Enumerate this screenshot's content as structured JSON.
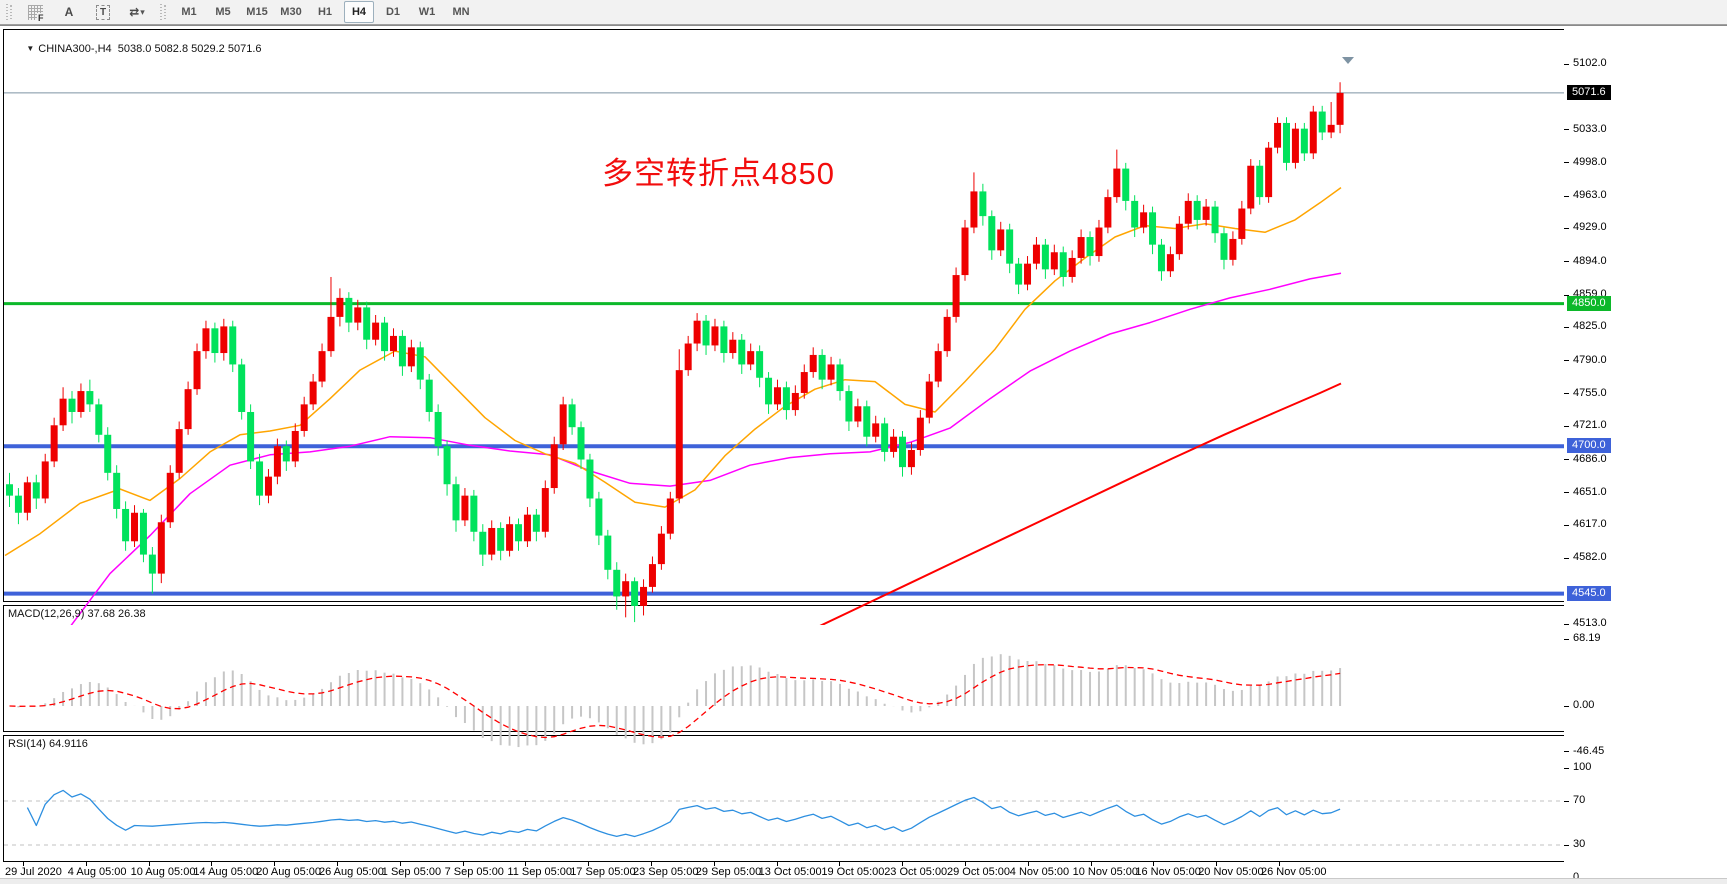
{
  "toolbar": {
    "icons": [
      {
        "name": "toolbar-customize-icon",
        "glyph": "F"
      },
      {
        "name": "font-tool-icon",
        "glyph": "A"
      },
      {
        "name": "text-box-tool-icon",
        "glyph": "T"
      },
      {
        "name": "color-scheme-icon",
        "glyph": "⇄"
      }
    ],
    "dropdown_caret": "▾",
    "timeframes": [
      "M1",
      "M5",
      "M15",
      "M30",
      "H1",
      "H4",
      "D1",
      "W1",
      "MN"
    ],
    "active_timeframe": "H4"
  },
  "chart": {
    "collapse_glyph": "▼",
    "title": "CHINA300-,H4",
    "ohlc_values": "5038.0 5082.8 5029.2 5071.6",
    "annotation": {
      "text": "多空转折点4850",
      "color": "#f20d0d"
    },
    "price_ticks": [
      "5102.0",
      "5033.0",
      "4998.0",
      "4963.0",
      "4929.0",
      "4894.0",
      "4859.0",
      "4825.0",
      "4790.0",
      "4755.0",
      "4721.0",
      "4686.0",
      "4651.0",
      "4617.0",
      "4582.0",
      "4513.0"
    ],
    "levels": [
      {
        "name": "current-price-line",
        "price": 5071.6,
        "label": "5071.6",
        "line_color": "#7e93a3",
        "badge_bg": "#000000",
        "thickness": 1
      },
      {
        "name": "level-line-4850",
        "price": 4850,
        "label": "4850.0",
        "line_color": "#0cb82a",
        "badge_bg": "#0cb82a",
        "thickness": 3
      },
      {
        "name": "level-line-4700",
        "price": 4700,
        "label": "4700.0",
        "line_color": "#3e62d9",
        "badge_bg": "#3e62d9",
        "thickness": 4
      },
      {
        "name": "level-line-4545",
        "price": 4545,
        "label": "4545.0",
        "line_color": "#3e62d9",
        "badge_bg": "#3e62d9",
        "thickness": 4
      }
    ]
  },
  "macd": {
    "label": "MACD(12,26,9) 37.68 26.38",
    "ticks": [
      {
        "v": 68.19,
        "label": "68.19"
      },
      {
        "v": 0,
        "label": "0.00"
      },
      {
        "v": -46.45,
        "label": "-46.45"
      }
    ]
  },
  "rsi": {
    "label": "RSI(14) 64.9116",
    "ticks": [
      {
        "v": 100,
        "label": "100"
      },
      {
        "v": 70,
        "label": "70"
      },
      {
        "v": 30,
        "label": "30"
      },
      {
        "v": 0,
        "label": "0"
      }
    ],
    "dashed_levels": [
      70,
      30
    ]
  },
  "time_axis": {
    "labels": [
      "29 Jul 2020",
      "4 Aug 05:00",
      "10 Aug 05:00",
      "14 Aug 05:00",
      "20 Aug 05:00",
      "26 Aug 05:00",
      "1 Sep 05:00",
      "7 Sep 05:00",
      "11 Sep 05:00",
      "17 Sep 05:00",
      "23 Sep 05:00",
      "29 Sep 05:00",
      "13 Oct 05:00",
      "19 Oct 05:00",
      "23 Oct 05:00",
      "29 Oct 05:00",
      "4 Nov 05:00",
      "10 Nov 05:00",
      "16 Nov 05:00",
      "20 Nov 05:00",
      "26 Nov 05:00"
    ]
  },
  "chart_data": {
    "type": "candlestick",
    "symbol": "CHINA300-",
    "timeframe": "H4",
    "last_bar": {
      "open": 5038.0,
      "high": 5082.8,
      "low": 5029.2,
      "close": 5071.6
    },
    "price_axis_range": {
      "min": 4513,
      "max": 5102
    },
    "colors": {
      "up": "#ee0000",
      "down": "#00e25c",
      "ma_fast": "#ffa500",
      "ma_mid": "#ff00ff",
      "ma_slow": "#ff0000",
      "macd_hist": "#c6c6c6",
      "macd_signal": "#ff0000",
      "rsi_line": "#2d8fe0",
      "dashed_level": "#c0c0c0",
      "shift_marker": "#7e93a3"
    },
    "candles": [
      [
        4660,
        4672,
        4636,
        4648
      ],
      [
        4648,
        4656,
        4618,
        4630
      ],
      [
        4630,
        4668,
        4622,
        4662
      ],
      [
        4662,
        4670,
        4634,
        4645
      ],
      [
        4645,
        4692,
        4640,
        4684
      ],
      [
        4684,
        4730,
        4678,
        4722
      ],
      [
        4722,
        4762,
        4716,
        4750
      ],
      [
        4750,
        4758,
        4724,
        4736
      ],
      [
        4736,
        4766,
        4730,
        4758
      ],
      [
        4758,
        4770,
        4736,
        4744
      ],
      [
        4744,
        4750,
        4704,
        4712
      ],
      [
        4712,
        4720,
        4664,
        4672
      ],
      [
        4672,
        4680,
        4624,
        4634
      ],
      [
        4634,
        4642,
        4590,
        4600
      ],
      [
        4600,
        4638,
        4594,
        4630
      ],
      [
        4630,
        4634,
        4578,
        4586
      ],
      [
        4586,
        4594,
        4545,
        4566
      ],
      [
        4566,
        4628,
        4556,
        4620
      ],
      [
        4620,
        4680,
        4614,
        4672
      ],
      [
        4672,
        4726,
        4666,
        4718
      ],
      [
        4718,
        4768,
        4712,
        4760
      ],
      [
        4760,
        4808,
        4754,
        4800
      ],
      [
        4800,
        4832,
        4792,
        4824
      ],
      [
        4824,
        4830,
        4788,
        4798
      ],
      [
        4798,
        4834,
        4790,
        4826
      ],
      [
        4826,
        4832,
        4778,
        4786
      ],
      [
        4786,
        4792,
        4728,
        4736
      ],
      [
        4736,
        4744,
        4676,
        4684
      ],
      [
        4684,
        4692,
        4638,
        4648
      ],
      [
        4648,
        4676,
        4640,
        4668
      ],
      [
        4668,
        4708,
        4660,
        4700
      ],
      [
        4700,
        4706,
        4674,
        4684
      ],
      [
        4684,
        4724,
        4678,
        4716
      ],
      [
        4716,
        4752,
        4710,
        4744
      ],
      [
        4744,
        4776,
        4738,
        4768
      ],
      [
        4768,
        4808,
        4762,
        4800
      ],
      [
        4800,
        4878,
        4794,
        4836
      ],
      [
        4836,
        4866,
        4826,
        4856
      ],
      [
        4856,
        4862,
        4820,
        4830
      ],
      [
        4830,
        4854,
        4822,
        4846
      ],
      [
        4846,
        4852,
        4802,
        4812
      ],
      [
        4812,
        4838,
        4806,
        4830
      ],
      [
        4830,
        4836,
        4790,
        4800
      ],
      [
        4800,
        4824,
        4794,
        4816
      ],
      [
        4816,
        4822,
        4774,
        4784
      ],
      [
        4784,
        4812,
        4778,
        4804
      ],
      [
        4804,
        4810,
        4760,
        4770
      ],
      [
        4770,
        4776,
        4726,
        4736
      ],
      [
        4736,
        4744,
        4690,
        4700
      ],
      [
        4700,
        4706,
        4648,
        4660
      ],
      [
        4660,
        4668,
        4610,
        4622
      ],
      [
        4622,
        4656,
        4616,
        4648
      ],
      [
        4648,
        4654,
        4600,
        4610
      ],
      [
        4610,
        4618,
        4574,
        4586
      ],
      [
        4586,
        4622,
        4580,
        4614
      ],
      [
        4614,
        4620,
        4580,
        4590
      ],
      [
        4590,
        4626,
        4584,
        4618
      ],
      [
        4618,
        4624,
        4590,
        4600
      ],
      [
        4600,
        4636,
        4594,
        4628
      ],
      [
        4628,
        4634,
        4600,
        4610
      ],
      [
        4610,
        4664,
        4604,
        4656
      ],
      [
        4656,
        4710,
        4650,
        4702
      ],
      [
        4702,
        4752,
        4696,
        4744
      ],
      [
        4744,
        4750,
        4712,
        4720
      ],
      [
        4720,
        4726,
        4676,
        4686
      ],
      [
        4686,
        4692,
        4636,
        4645
      ],
      [
        4645,
        4652,
        4596,
        4606
      ],
      [
        4606,
        4612,
        4560,
        4570
      ],
      [
        4570,
        4578,
        4528,
        4542
      ],
      [
        4542,
        4566,
        4520,
        4558
      ],
      [
        4558,
        4562,
        4515,
        4532
      ],
      [
        4532,
        4560,
        4522,
        4552
      ],
      [
        4552,
        4584,
        4546,
        4576
      ],
      [
        4576,
        4616,
        4570,
        4608
      ],
      [
        4608,
        4652,
        4602,
        4645
      ],
      [
        4645,
        4802,
        4640,
        4780
      ],
      [
        4780,
        4816,
        4774,
        4808
      ],
      [
        4808,
        4840,
        4800,
        4832
      ],
      [
        4832,
        4838,
        4796,
        4806
      ],
      [
        4806,
        4834,
        4800,
        4826
      ],
      [
        4826,
        4832,
        4788,
        4798
      ],
      [
        4798,
        4820,
        4792,
        4812
      ],
      [
        4812,
        4818,
        4776,
        4786
      ],
      [
        4786,
        4808,
        4780,
        4800
      ],
      [
        4800,
        4806,
        4762,
        4772
      ],
      [
        4772,
        4778,
        4734,
        4744
      ],
      [
        4744,
        4770,
        4738,
        4762
      ],
      [
        4762,
        4768,
        4728,
        4738
      ],
      [
        4738,
        4764,
        4732,
        4756
      ],
      [
        4756,
        4786,
        4750,
        4778
      ],
      [
        4778,
        4804,
        4772,
        4796
      ],
      [
        4796,
        4802,
        4760,
        4770
      ],
      [
        4770,
        4794,
        4764,
        4786
      ],
      [
        4786,
        4792,
        4748,
        4758
      ],
      [
        4758,
        4764,
        4716,
        4726
      ],
      [
        4726,
        4750,
        4720,
        4742
      ],
      [
        4742,
        4748,
        4700,
        4710
      ],
      [
        4710,
        4732,
        4704,
        4724
      ],
      [
        4724,
        4730,
        4684,
        4694
      ],
      [
        4694,
        4718,
        4688,
        4710
      ],
      [
        4710,
        4716,
        4668,
        4678
      ],
      [
        4678,
        4704,
        4670,
        4696
      ],
      [
        4696,
        4738,
        4690,
        4730
      ],
      [
        4730,
        4776,
        4724,
        4768
      ],
      [
        4768,
        4808,
        4762,
        4800
      ],
      [
        4800,
        4844,
        4794,
        4836
      ],
      [
        4836,
        4888,
        4830,
        4880
      ],
      [
        4880,
        4938,
        4874,
        4930
      ],
      [
        4930,
        4988,
        4924,
        4968
      ],
      [
        4968,
        4976,
        4932,
        4942
      ],
      [
        4942,
        4948,
        4896,
        4906
      ],
      [
        4906,
        4936,
        4900,
        4928
      ],
      [
        4928,
        4934,
        4882,
        4892
      ],
      [
        4892,
        4898,
        4860,
        4870
      ],
      [
        4870,
        4900,
        4864,
        4892
      ],
      [
        4892,
        4920,
        4886,
        4912
      ],
      [
        4912,
        4918,
        4876,
        4886
      ],
      [
        4886,
        4912,
        4880,
        4904
      ],
      [
        4904,
        4910,
        4868,
        4878
      ],
      [
        4878,
        4906,
        4872,
        4898
      ],
      [
        4898,
        4928,
        4892,
        4920
      ],
      [
        4920,
        4926,
        4890,
        4900
      ],
      [
        4900,
        4938,
        4894,
        4930
      ],
      [
        4930,
        4970,
        4924,
        4962
      ],
      [
        4962,
        5012,
        4956,
        4992
      ],
      [
        4992,
        4998,
        4948,
        4958
      ],
      [
        4958,
        4964,
        4920,
        4930
      ],
      [
        4930,
        4954,
        4924,
        4946
      ],
      [
        4946,
        4952,
        4902,
        4912
      ],
      [
        4912,
        4918,
        4874,
        4884
      ],
      [
        4884,
        4910,
        4878,
        4902
      ],
      [
        4902,
        4942,
        4896,
        4934
      ],
      [
        4934,
        4966,
        4928,
        4958
      ],
      [
        4958,
        4964,
        4928,
        4938
      ],
      [
        4938,
        4960,
        4932,
        4952
      ],
      [
        4952,
        4958,
        4914,
        4924
      ],
      [
        4924,
        4930,
        4886,
        4896
      ],
      [
        4896,
        4926,
        4890,
        4918
      ],
      [
        4918,
        4958,
        4912,
        4950
      ],
      [
        4950,
        5002,
        4944,
        4995
      ],
      [
        4995,
        5001,
        4954,
        4962
      ],
      [
        4962,
        5020,
        4956,
        5014
      ],
      [
        5014,
        5046,
        5008,
        5040
      ],
      [
        5040,
        5046,
        4990,
        4998
      ],
      [
        4998,
        5040,
        4992,
        5034
      ],
      [
        5034,
        5040,
        5000,
        5008
      ],
      [
        5008,
        5058,
        5002,
        5052
      ],
      [
        5052,
        5058,
        5022,
        5030
      ],
      [
        5030,
        5062,
        5024,
        5038
      ],
      [
        5038,
        5082.8,
        5029.2,
        5071.6
      ]
    ],
    "ma_fast_points": [
      [
        5,
        4585
      ],
      [
        40,
        4608
      ],
      [
        80,
        4640
      ],
      [
        120,
        4655
      ],
      [
        150,
        4643
      ],
      [
        180,
        4666
      ],
      [
        210,
        4694
      ],
      [
        240,
        4712
      ],
      [
        270,
        4716
      ],
      [
        300,
        4722
      ],
      [
        330,
        4750
      ],
      [
        360,
        4780
      ],
      [
        395,
        4800
      ],
      [
        425,
        4794
      ],
      [
        455,
        4762
      ],
      [
        485,
        4730
      ],
      [
        515,
        4706
      ],
      [
        545,
        4692
      ],
      [
        575,
        4682
      ],
      [
        605,
        4662
      ],
      [
        635,
        4641
      ],
      [
        665,
        4636
      ],
      [
        695,
        4654
      ],
      [
        725,
        4690
      ],
      [
        755,
        4718
      ],
      [
        785,
        4742
      ],
      [
        815,
        4760
      ],
      [
        845,
        4770
      ],
      [
        875,
        4768
      ],
      [
        905,
        4744
      ],
      [
        935,
        4736
      ],
      [
        965,
        4768
      ],
      [
        995,
        4802
      ],
      [
        1025,
        4844
      ],
      [
        1055,
        4874
      ],
      [
        1085,
        4898
      ],
      [
        1115,
        4920
      ],
      [
        1145,
        4932
      ],
      [
        1175,
        4929
      ],
      [
        1205,
        4934
      ],
      [
        1235,
        4929
      ],
      [
        1265,
        4925
      ],
      [
        1295,
        4938
      ],
      [
        1320,
        4956
      ],
      [
        1341,
        4972
      ]
    ],
    "ma_mid_points": [
      [
        30,
        4440
      ],
      [
        70,
        4510
      ],
      [
        110,
        4566
      ],
      [
        150,
        4606
      ],
      [
        190,
        4650
      ],
      [
        230,
        4680
      ],
      [
        270,
        4691
      ],
      [
        310,
        4694
      ],
      [
        350,
        4700
      ],
      [
        390,
        4710
      ],
      [
        430,
        4709
      ],
      [
        470,
        4701
      ],
      [
        510,
        4695
      ],
      [
        550,
        4691
      ],
      [
        590,
        4674
      ],
      [
        630,
        4661
      ],
      [
        670,
        4658
      ],
      [
        710,
        4664
      ],
      [
        750,
        4680
      ],
      [
        790,
        4688
      ],
      [
        830,
        4692
      ],
      [
        870,
        4694
      ],
      [
        910,
        4704
      ],
      [
        950,
        4719
      ],
      [
        990,
        4750
      ],
      [
        1030,
        4779
      ],
      [
        1070,
        4800
      ],
      [
        1110,
        4818
      ],
      [
        1150,
        4830
      ],
      [
        1190,
        4844
      ],
      [
        1230,
        4856
      ],
      [
        1270,
        4865
      ],
      [
        1310,
        4876
      ],
      [
        1341,
        4882
      ]
    ],
    "ma_slow_points": [
      [
        808,
        4505
      ],
      [
        860,
        4531
      ],
      [
        912,
        4557
      ],
      [
        964,
        4583
      ],
      [
        1016,
        4609
      ],
      [
        1068,
        4635
      ],
      [
        1120,
        4661
      ],
      [
        1172,
        4687
      ],
      [
        1224,
        4712
      ],
      [
        1276,
        4736
      ],
      [
        1320,
        4756
      ],
      [
        1341,
        4766
      ]
    ]
  }
}
